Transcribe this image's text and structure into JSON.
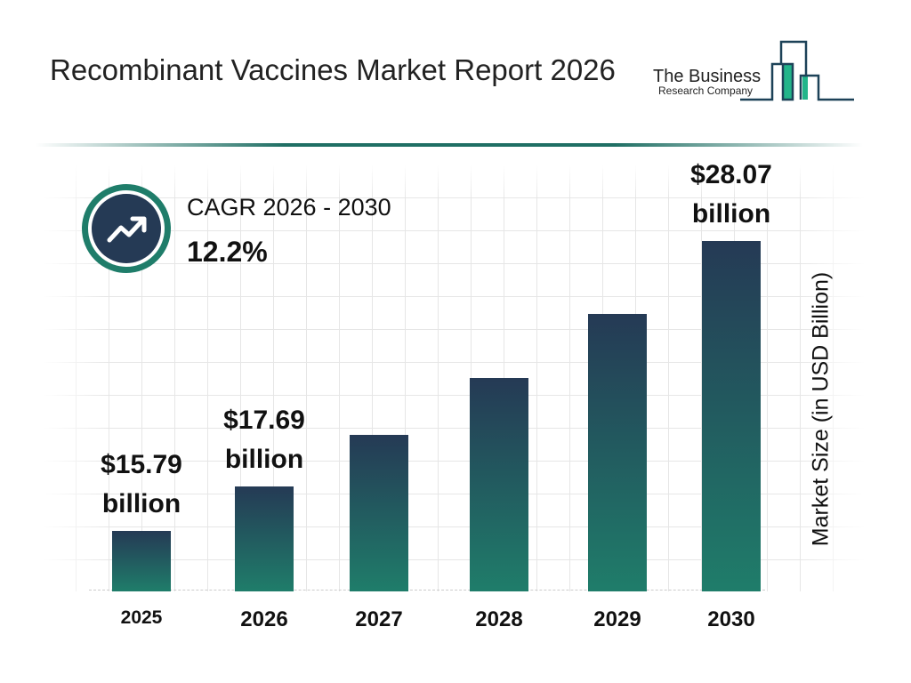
{
  "title": "Recombinant Vaccines Market Report 2026",
  "logo": {
    "line1": "The Business",
    "line2": "Research Company"
  },
  "cagr": {
    "label": "CAGR 2026 - 2030",
    "value": "12.2%",
    "icon": "trending-up-icon"
  },
  "colors": {
    "bar_top": "#253a55",
    "bar_bottom": "#1f7d6a",
    "accent": "#1f7d6a"
  },
  "chart_data": {
    "type": "bar",
    "title": "Recombinant Vaccines Market Report 2026",
    "categories": [
      "2025",
      "2026",
      "2027",
      "2028",
      "2029",
      "2030"
    ],
    "values": [
      15.79,
      17.69,
      19.85,
      22.27,
      24.99,
      28.07
    ],
    "data_labels": [
      {
        "index": 0,
        "line1": "$15.79",
        "line2": "billion"
      },
      {
        "index": 1,
        "line1": "$17.69",
        "line2": "billion"
      },
      {
        "index": 5,
        "line1": "$28.07",
        "line2": "billion"
      }
    ],
    "xlabel": "",
    "ylabel": "Market Size (in USD Billion)",
    "grid": true
  }
}
